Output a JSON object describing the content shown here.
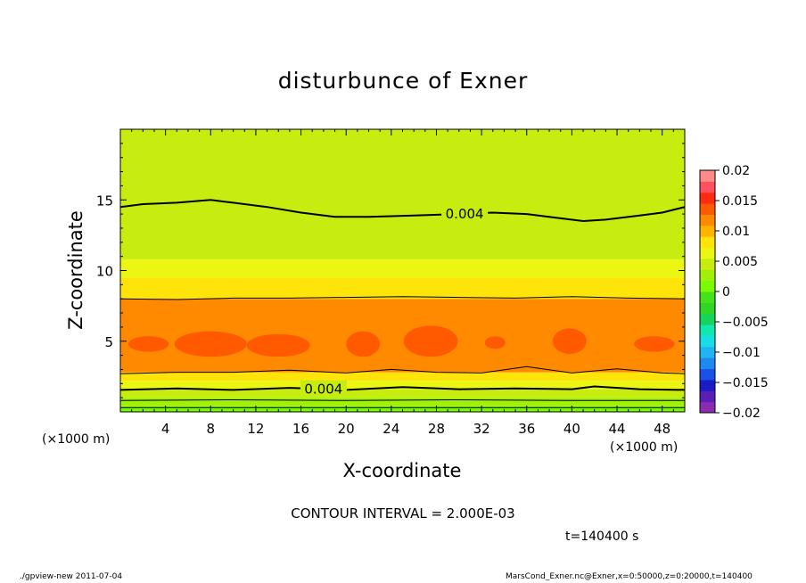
{
  "title": "disturbunce of Exner",
  "contour_interval": "CONTOUR INTERVAL = 2.000E-03",
  "time": "t=140400 s",
  "footer_left": "./gpview-new   2011-07-04",
  "footer_right": "MarsCond_Exner.nc@Exner,x=0:50000,z=0:20000,t=140400",
  "colors": {
    "band_0_000_0_002": "#2fd624",
    "band_0_002_0_004": "#45e11a",
    "band_0_004_0_006": "#7bfb03",
    "band_0_006_0_008": "#a0f00a",
    "band_0_008_0_010": "#c7ec10",
    "band_0_010_0_012": "#ecf613",
    "band_0_012_0_014": "#ffff0a"
  },
  "chart_data": {
    "type": "contour",
    "title": "disturbunce of Exner",
    "xlabel": "X-coordinate",
    "ylabel": "Z-coordinate",
    "x_unit": "(×1000 m)",
    "y_unit": "(×1000 m)",
    "xlim": [
      0,
      50
    ],
    "ylim": [
      0,
      20
    ],
    "x_ticks": [
      4,
      8,
      12,
      16,
      20,
      24,
      28,
      32,
      36,
      40,
      44,
      48
    ],
    "y_ticks": [
      5,
      10,
      15
    ],
    "contour_interval": 0.002,
    "contour_labels": [
      {
        "text": "0.004",
        "x": 30.5,
        "z": 14.0
      },
      {
        "text": "0.004",
        "x": 18.0,
        "z": 1.6
      }
    ],
    "colorbar": {
      "ticks": [
        "0.02",
        "0.015",
        "0.01",
        "0.005",
        "0",
        "−0.005",
        "−0.01",
        "−0.015",
        "−0.02"
      ],
      "min": -0.02,
      "max": 0.02,
      "colors": [
        "#8a2bb0",
        "#5a1db5",
        "#1a1cc4",
        "#1a52e8",
        "#1e8af0",
        "#20b4f0",
        "#18dce6",
        "#10e8b0",
        "#14d45c",
        "#2fd624",
        "#45e11a",
        "#7bfb03",
        "#a0f00a",
        "#c7ec10",
        "#ecf613",
        "#ffe40a",
        "#ffb400",
        "#ff8a00",
        "#ff5a00",
        "#ff2a10",
        "#ff5060",
        "#ff8a8a"
      ]
    },
    "bands": [
      {
        "z_from": 0.0,
        "z_to": 0.4,
        "level": 0.001
      },
      {
        "z_from": 0.4,
        "z_to": 1.0,
        "level": 0.003
      },
      {
        "z_from": 1.0,
        "z_to": 1.6,
        "level": 0.005
      },
      {
        "z_from": 1.6,
        "z_to": 2.2,
        "level": 0.007
      },
      {
        "z_from": 2.2,
        "z_to": 2.8,
        "level": 0.009
      },
      {
        "z_from": 2.8,
        "z_to": 8.0,
        "level": 0.011
      },
      {
        "z_from": 8.0,
        "z_to": 9.5,
        "level": 0.009
      },
      {
        "z_from": 9.5,
        "z_to": 10.8,
        "level": 0.007
      },
      {
        "z_from": 10.8,
        "z_to": 20.0,
        "level": 0.005
      }
    ],
    "highs": [
      {
        "x": 2.5,
        "z": 4.8,
        "rx": 1.8,
        "rz": 0.55
      },
      {
        "x": 8.0,
        "z": 4.8,
        "rx": 3.2,
        "rz": 0.9
      },
      {
        "x": 14.0,
        "z": 4.7,
        "rx": 2.8,
        "rz": 0.8
      },
      {
        "x": 21.5,
        "z": 4.8,
        "rx": 1.5,
        "rz": 0.9
      },
      {
        "x": 27.5,
        "z": 5.0,
        "rx": 2.4,
        "rz": 1.1
      },
      {
        "x": 33.2,
        "z": 4.9,
        "rx": 0.9,
        "rz": 0.45
      },
      {
        "x": 39.8,
        "z": 5.0,
        "rx": 1.5,
        "rz": 0.9
      },
      {
        "x": 47.3,
        "z": 4.8,
        "rx": 1.8,
        "rz": 0.55
      }
    ],
    "contours": [
      {
        "thick": true,
        "points": [
          [
            0,
            14.5
          ],
          [
            2,
            14.7
          ],
          [
            5,
            14.8
          ],
          [
            8,
            15.0
          ],
          [
            10,
            14.8
          ],
          [
            13,
            14.5
          ],
          [
            16,
            14.1
          ],
          [
            19,
            13.8
          ],
          [
            22,
            13.8
          ],
          [
            26,
            13.9
          ],
          [
            30,
            14.0
          ],
          [
            33,
            14.1
          ],
          [
            36,
            14.0
          ],
          [
            39,
            13.7
          ],
          [
            41,
            13.5
          ],
          [
            43,
            13.6
          ],
          [
            46,
            13.9
          ],
          [
            48,
            14.1
          ],
          [
            50,
            14.5
          ]
        ]
      },
      {
        "thick": false,
        "points": [
          [
            0,
            8.0
          ],
          [
            5,
            7.95
          ],
          [
            10,
            8.05
          ],
          [
            15,
            8.05
          ],
          [
            20,
            8.1
          ],
          [
            25,
            8.15
          ],
          [
            30,
            8.1
          ],
          [
            35,
            8.05
          ],
          [
            40,
            8.15
          ],
          [
            45,
            8.05
          ],
          [
            50,
            8.0
          ]
        ]
      },
      {
        "thick": false,
        "points": [
          [
            0,
            2.7
          ],
          [
            5,
            2.8
          ],
          [
            10,
            2.8
          ],
          [
            15,
            2.95
          ],
          [
            20,
            2.75
          ],
          [
            24,
            3.0
          ],
          [
            28,
            2.8
          ],
          [
            32,
            2.75
          ],
          [
            36,
            3.2
          ],
          [
            40,
            2.75
          ],
          [
            44,
            3.05
          ],
          [
            48,
            2.75
          ],
          [
            50,
            2.7
          ]
        ]
      },
      {
        "thick": true,
        "points": [
          [
            0,
            1.55
          ],
          [
            5,
            1.65
          ],
          [
            10,
            1.55
          ],
          [
            15,
            1.7
          ],
          [
            20,
            1.55
          ],
          [
            25,
            1.75
          ],
          [
            30,
            1.6
          ],
          [
            35,
            1.65
          ],
          [
            40,
            1.6
          ],
          [
            42,
            1.8
          ],
          [
            46,
            1.6
          ],
          [
            50,
            1.55
          ]
        ]
      },
      {
        "thick": false,
        "points": [
          [
            0,
            0.8
          ],
          [
            10,
            0.85
          ],
          [
            20,
            0.8
          ],
          [
            30,
            0.85
          ],
          [
            40,
            0.8
          ],
          [
            50,
            0.8
          ]
        ]
      },
      {
        "thick": false,
        "points": [
          [
            0,
            0.3
          ],
          [
            50,
            0.3
          ]
        ]
      }
    ]
  }
}
